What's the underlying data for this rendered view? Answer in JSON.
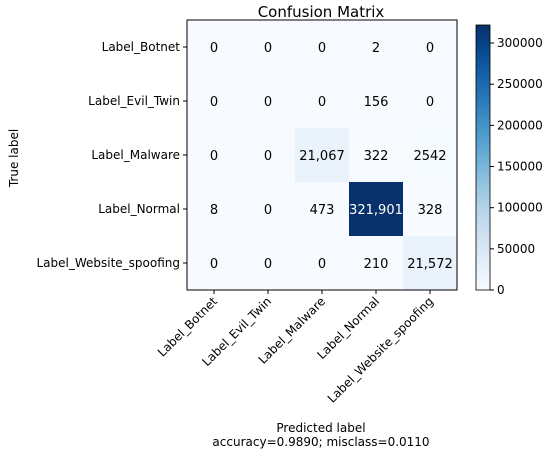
{
  "chart_data": {
    "type": "heatmap",
    "title": "Confusion Matrix",
    "ylabel": "True label",
    "xlabel": "Predicted label",
    "subtitle_below_xlabel": "accuracy=0.9890; misclass=0.0110",
    "row_labels": [
      "Label_Botnet",
      "Label_Evil_Twin",
      "Label_Malware",
      "Label_Normal",
      "Label_Website_spoofing"
    ],
    "col_labels": [
      "Label_Botnet",
      "Label_Evil_Twin",
      "Label_Malware",
      "Label_Normal",
      "Label_Website_spoofing"
    ],
    "values": [
      [
        0,
        0,
        0,
        2,
        0
      ],
      [
        0,
        0,
        0,
        156,
        0
      ],
      [
        0,
        0,
        21067,
        322,
        2542
      ],
      [
        8,
        0,
        473,
        321901,
        328
      ],
      [
        0,
        0,
        0,
        210,
        21572
      ]
    ],
    "cell_labels": [
      [
        "0",
        "0",
        "0",
        "2",
        "0"
      ],
      [
        "0",
        "0",
        "0",
        "156",
        "0"
      ],
      [
        "0",
        "0",
        "21,067",
        "322",
        "2542"
      ],
      [
        "8",
        "0",
        "473",
        "321,901",
        "328"
      ],
      [
        "0",
        "0",
        "0",
        "210",
        "21,572"
      ]
    ],
    "colorbar": {
      "colormap": "Blues",
      "min": 0,
      "max": 321901,
      "ticks": [
        0,
        50000,
        100000,
        150000,
        200000,
        250000,
        300000
      ],
      "tick_labels": [
        "0",
        "50000",
        "100000",
        "150000",
        "200000",
        "250000",
        "300000"
      ]
    }
  }
}
